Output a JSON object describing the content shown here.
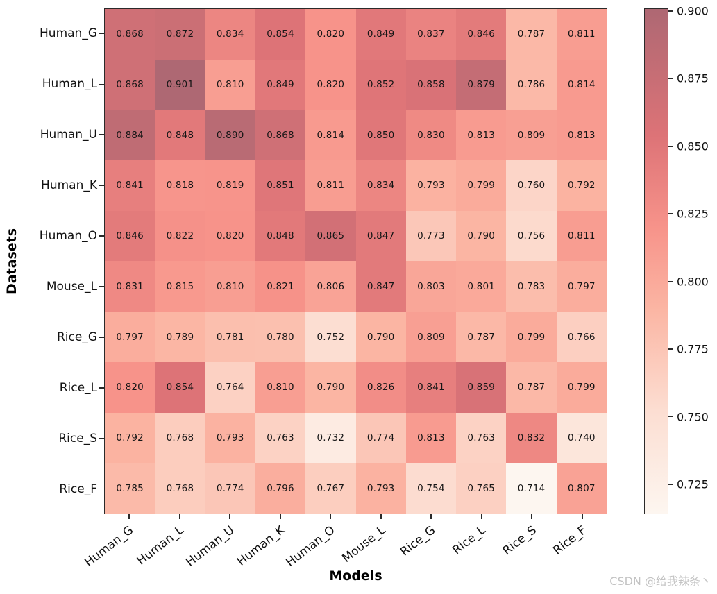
{
  "figure": {
    "watermark": "CSDN @给我辣条丶"
  },
  "chart_data": {
    "type": "heatmap",
    "title": "",
    "xlabel": "Models",
    "ylabel": "Datasets",
    "rows": [
      "Human_G",
      "Human_L",
      "Human_U",
      "Human_K",
      "Human_O",
      "Mouse_L",
      "Rice_G",
      "Rice_L",
      "Rice_S",
      "Rice_F"
    ],
    "cols": [
      "Human_G",
      "Human_L",
      "Human_U",
      "Human_K",
      "Human_O",
      "Mouse_L",
      "Rice_G",
      "Rice_L",
      "Rice_S",
      "Rice_F"
    ],
    "values": [
      [
        0.868,
        0.872,
        0.834,
        0.854,
        0.82,
        0.849,
        0.837,
        0.846,
        0.787,
        0.811
      ],
      [
        0.868,
        0.901,
        0.81,
        0.849,
        0.82,
        0.852,
        0.858,
        0.879,
        0.786,
        0.814
      ],
      [
        0.884,
        0.848,
        0.89,
        0.868,
        0.814,
        0.85,
        0.83,
        0.813,
        0.809,
        0.813
      ],
      [
        0.841,
        0.818,
        0.819,
        0.851,
        0.811,
        0.834,
        0.793,
        0.799,
        0.76,
        0.792
      ],
      [
        0.846,
        0.822,
        0.82,
        0.848,
        0.865,
        0.847,
        0.773,
        0.79,
        0.756,
        0.811
      ],
      [
        0.831,
        0.815,
        0.81,
        0.821,
        0.806,
        0.847,
        0.803,
        0.801,
        0.783,
        0.797
      ],
      [
        0.797,
        0.789,
        0.781,
        0.78,
        0.752,
        0.79,
        0.809,
        0.787,
        0.799,
        0.766
      ],
      [
        0.82,
        0.854,
        0.764,
        0.81,
        0.79,
        0.826,
        0.841,
        0.859,
        0.787,
        0.799
      ],
      [
        0.792,
        0.768,
        0.793,
        0.763,
        0.732,
        0.774,
        0.813,
        0.763,
        0.832,
        0.74
      ],
      [
        0.785,
        0.768,
        0.774,
        0.796,
        0.767,
        0.793,
        0.754,
        0.765,
        0.714,
        0.807
      ]
    ],
    "value_decimals": 3,
    "vmin": 0.714,
    "vmax": 0.901,
    "colorbar_ticks": [
      0.9,
      0.875,
      0.85,
      0.825,
      0.8,
      0.775,
      0.75,
      0.725
    ],
    "colorbar_tick_decimals": 3,
    "colormap_anchors": [
      {
        "v": 0.714,
        "color": "#fdf6f0"
      },
      {
        "v": 0.752,
        "color": "#fcded2"
      },
      {
        "v": 0.79,
        "color": "#fbb5a3"
      },
      {
        "v": 0.82,
        "color": "#f7938a"
      },
      {
        "v": 0.854,
        "color": "#dd7377"
      },
      {
        "v": 0.901,
        "color": "#ae6873"
      }
    ],
    "legend_position": "right-colorbar",
    "grid": false
  }
}
